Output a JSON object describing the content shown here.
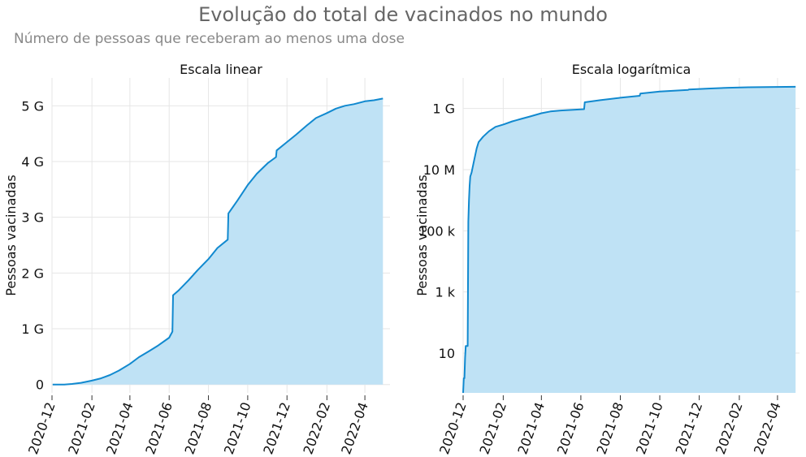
{
  "title": "Evolução do total de vacinados no mundo",
  "subtitle": "Número de pessoas que receberam ao menos uma dose",
  "colors": {
    "line": "#1189cf",
    "fill": "#bfe2f5",
    "grid": "#e6e6e6",
    "title": "#666666",
    "subtitle": "#888888",
    "text": "#111111"
  },
  "chart_data": [
    {
      "type": "area",
      "title": "Escala linear",
      "ylabel": "Pessoas vacinadas",
      "yscale": "linear",
      "xlim": [
        "2020-12-01",
        "2022-05-10"
      ],
      "ylim": [
        -0.15,
        5.5
      ],
      "xticks": [
        "2020-12",
        "2021-02",
        "2021-04",
        "2021-06",
        "2021-08",
        "2021-10",
        "2021-12",
        "2022-02",
        "2022-04"
      ],
      "yticks": [
        0,
        1,
        2,
        3,
        4,
        5
      ],
      "ytick_labels": [
        "0",
        "1 G",
        "2 G",
        "3 G",
        "4 G",
        "5 G"
      ],
      "grid": true,
      "series": [
        {
          "x": [
            "2020-12-02",
            "2020-12-20",
            "2021-01-01",
            "2021-01-15",
            "2021-02-01",
            "2021-02-15",
            "2021-03-01",
            "2021-03-15",
            "2021-04-01",
            "2021-04-15",
            "2021-05-01",
            "2021-05-15",
            "2021-06-01",
            "2021-06-06",
            "2021-06-07",
            "2021-06-15",
            "2021-07-01",
            "2021-07-15",
            "2021-08-01",
            "2021-08-15",
            "2021-08-31",
            "2021-09-01",
            "2021-09-15",
            "2021-10-01",
            "2021-10-15",
            "2021-11-01",
            "2021-11-14",
            "2021-11-15",
            "2021-12-01",
            "2021-12-15",
            "2022-01-01",
            "2022-01-15",
            "2022-02-01",
            "2022-02-15",
            "2022-03-01",
            "2022-03-15",
            "2022-04-01",
            "2022-04-15",
            "2022-04-29"
          ],
          "y": [
            0.0,
            0.0,
            0.01,
            0.03,
            0.07,
            0.11,
            0.17,
            0.25,
            0.37,
            0.49,
            0.6,
            0.7,
            0.84,
            0.95,
            1.6,
            1.68,
            1.87,
            2.05,
            2.25,
            2.45,
            2.6,
            3.07,
            3.3,
            3.58,
            3.78,
            3.97,
            4.08,
            4.2,
            4.35,
            4.48,
            4.65,
            4.78,
            4.87,
            4.95,
            5.0,
            5.03,
            5.08,
            5.1,
            5.13
          ]
        }
      ]
    },
    {
      "type": "area",
      "title": "Escala logarítmica",
      "ylabel": "Pessoas vacinadas",
      "yscale": "log",
      "xlim": [
        "2020-12-01",
        "2022-05-05"
      ],
      "ylim": [
        0.5,
        10000000000
      ],
      "xticks": [
        "2020-12",
        "2021-02",
        "2021-04",
        "2021-06",
        "2021-08",
        "2021-10",
        "2021-12",
        "2022-02",
        "2022-04"
      ],
      "yticks": [
        10,
        1000,
        100000,
        10000000,
        1000000000
      ],
      "ytick_labels": [
        "10",
        "1 k",
        "100 k",
        "10 M",
        "1 G"
      ],
      "grid": true,
      "series": [
        {
          "x": [
            "2020-12-01",
            "2020-12-02",
            "2020-12-03",
            "2020-12-04",
            "2020-12-05",
            "2020-12-08",
            "2020-12-09",
            "2020-12-10",
            "2020-12-11",
            "2020-12-12",
            "2020-12-14",
            "2020-12-18",
            "2020-12-22",
            "2020-12-25",
            "2021-01-01",
            "2021-01-10",
            "2021-01-20",
            "2021-02-01",
            "2021-02-15",
            "2021-03-01",
            "2021-03-15",
            "2021-04-01",
            "2021-04-15",
            "2021-05-01",
            "2021-06-06",
            "2021-06-07",
            "2021-07-01",
            "2021-08-01",
            "2021-08-31",
            "2021-09-01",
            "2021-10-01",
            "2021-11-14",
            "2021-11-15",
            "2021-12-15",
            "2022-01-15",
            "2022-02-15",
            "2022-03-15",
            "2022-04-29"
          ],
          "y": [
            0.5,
            1.5,
            1.5,
            7,
            17,
            17,
            200000,
            1000000,
            3000000,
            6000000,
            8000000,
            20000000,
            50000000,
            80000000,
            120000000,
            180000000,
            250000000,
            300000000,
            380000000,
            460000000,
            550000000,
            700000000,
            800000000,
            860000000,
            950000000,
            1600000000,
            1870000000,
            2250000000,
            2600000000,
            3070000000,
            3580000000,
            4080000000,
            4200000000,
            4480000000,
            4780000000,
            4950000000,
            5030000000,
            5130000000
          ]
        }
      ]
    }
  ]
}
